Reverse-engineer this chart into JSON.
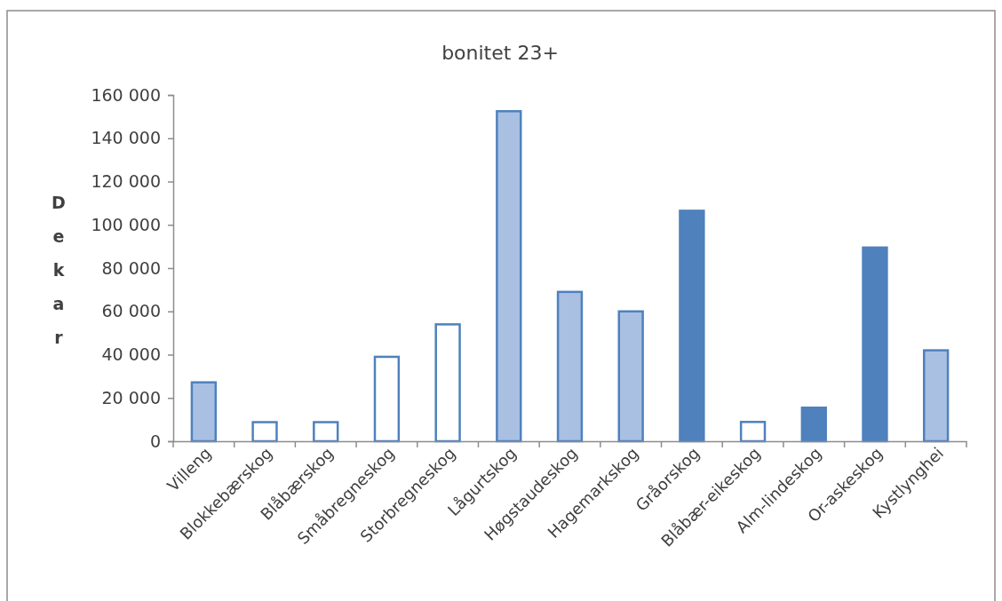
{
  "chart_data": {
    "type": "bar",
    "title": "bonitet 23+",
    "ylabel": "Dekar",
    "categories": [
      "Villeng",
      "Blokkebærskog",
      "Blåbærskog",
      "Småbregneskog",
      "Storbregneskog",
      "Lågurtskog",
      "Høgstaudeskog",
      "Hagemarkskog",
      "Gråorskog",
      "Blåbær-eikeskog",
      "Alm-lindeskog",
      "Or-askeskog",
      "Kystlynghei"
    ],
    "values": [
      27200,
      8800,
      8800,
      39000,
      54000,
      152500,
      69000,
      60000,
      106500,
      8900,
      15500,
      89500,
      42000
    ],
    "colors": [
      "#a9c0e2",
      "#ffffff",
      "#ffffff",
      "#ffffff",
      "#ffffff",
      "#a9c0e2",
      "#a9c0e2",
      "#a9c0e2",
      "#4f81bd",
      "#ffffff",
      "#4f81bd",
      "#4f81bd",
      "#a9c0e2"
    ],
    "ylim": [
      0,
      160000
    ],
    "yticks": [
      {
        "value": 0,
        "label": "0"
      },
      {
        "value": 20000,
        "label": "20 000"
      },
      {
        "value": 40000,
        "label": "40 000"
      },
      {
        "value": 60000,
        "label": "60 000"
      },
      {
        "value": 80000,
        "label": "80 000"
      },
      {
        "value": 100000,
        "label": "100 000"
      },
      {
        "value": 120000,
        "label": "120 000"
      },
      {
        "value": 140000,
        "label": "140 000"
      },
      {
        "value": 160000,
        "label": "160 000"
      }
    ],
    "grid": false
  }
}
